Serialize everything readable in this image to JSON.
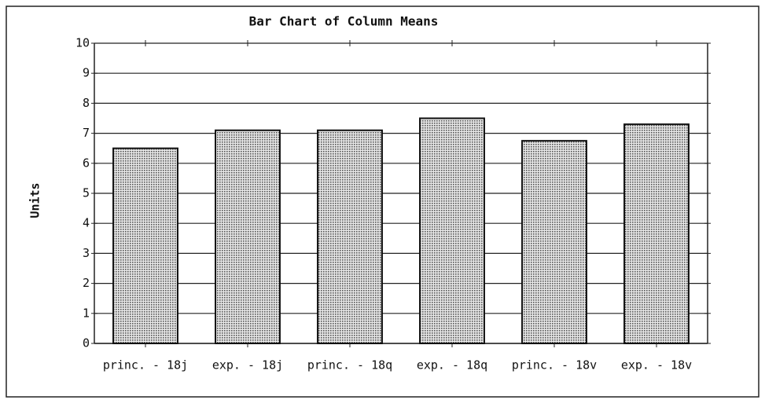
{
  "chart_data": {
    "type": "bar",
    "title": "Bar Chart of Column Means",
    "y_label": "Units",
    "categories": [
      "princ. - 18j",
      "exp. - 18j",
      "princ. - 18q",
      "exp. - 18q",
      "princ. - 18v",
      "exp. - 18v"
    ],
    "values": [
      6.5,
      7.1,
      7.1,
      7.5,
      6.75,
      7.3
    ],
    "color": "#555555",
    "ylim": [
      0,
      10
    ],
    "yticks": [
      0,
      1,
      2,
      3,
      4,
      5,
      6,
      7,
      8,
      9,
      10
    ],
    "grid": true
  }
}
